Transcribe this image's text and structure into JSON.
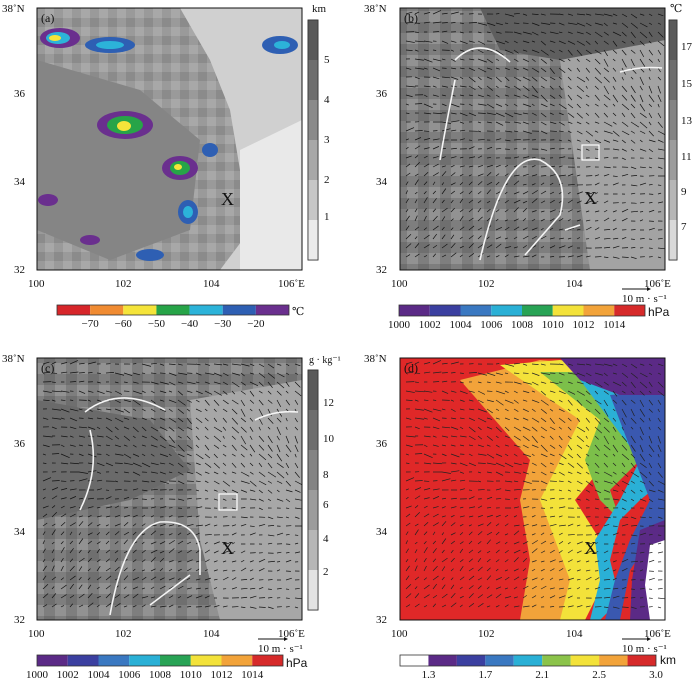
{
  "panels": [
    {
      "label": "(a)",
      "unit": "km",
      "colorbar_ticks": [
        "5",
        "4",
        "3",
        "2",
        "1"
      ],
      "marker": "X"
    },
    {
      "label": "(b)",
      "unit": "℃",
      "colorbar_ticks": [
        "17",
        "15",
        "13",
        "11",
        "9",
        "7"
      ],
      "marker": "X",
      "wind_scale": "10 m · s⁻¹"
    },
    {
      "label": "(c)",
      "unit": "g · kg⁻¹",
      "colorbar_ticks": [
        "12",
        "10",
        "8",
        "6",
        "4",
        "2"
      ],
      "marker": "X",
      "wind_scale": "10 m · s⁻¹"
    },
    {
      "label": "(d)",
      "marker": "X",
      "wind_scale": "10 m · s⁻¹"
    }
  ],
  "axes": {
    "x_ticks": [
      "100",
      "102",
      "104",
      "106˚E"
    ],
    "y_ticks": [
      "38˚N",
      "36",
      "34",
      "32"
    ]
  },
  "colorbars": {
    "a": {
      "ticks": [
        "−70",
        "−60",
        "−50",
        "−40",
        "−30",
        "−20"
      ],
      "unit": "℃",
      "colors": [
        "#d7262a",
        "#f08b32",
        "#f5e43a",
        "#27a448",
        "#2cb3d9",
        "#2e5fb3",
        "#6a2f8e"
      ]
    },
    "b": {
      "ticks": [
        "1000",
        "1002",
        "1004",
        "1006",
        "1008",
        "1010",
        "1012",
        "1014"
      ],
      "unit": "hPa",
      "colors": [
        "#5b2a86",
        "#3b3fa0",
        "#3a78c1",
        "#2ab0d6",
        "#28a355",
        "#f3e23a",
        "#f2a33a",
        "#d62a2a"
      ]
    },
    "c": {
      "ticks": [
        "1000",
        "1002",
        "1004",
        "1006",
        "1008",
        "1010",
        "1012",
        "1014"
      ],
      "unit": "hPa",
      "colors": [
        "#5b2a86",
        "#3b3fa0",
        "#3a78c1",
        "#2ab0d6",
        "#28a355",
        "#f3e23a",
        "#f2a33a",
        "#d62a2a"
      ]
    },
    "d": {
      "ticks": [
        "1.3",
        "1.7",
        "2.1",
        "2.5",
        "3.0"
      ],
      "unit": "km",
      "colors": [
        "#ffffff",
        "#5b2a86",
        "#3b3fa0",
        "#3a78c1",
        "#2ab0d6",
        "#8bc34a",
        "#f3e23a",
        "#f2a33a",
        "#d62a2a"
      ]
    }
  }
}
